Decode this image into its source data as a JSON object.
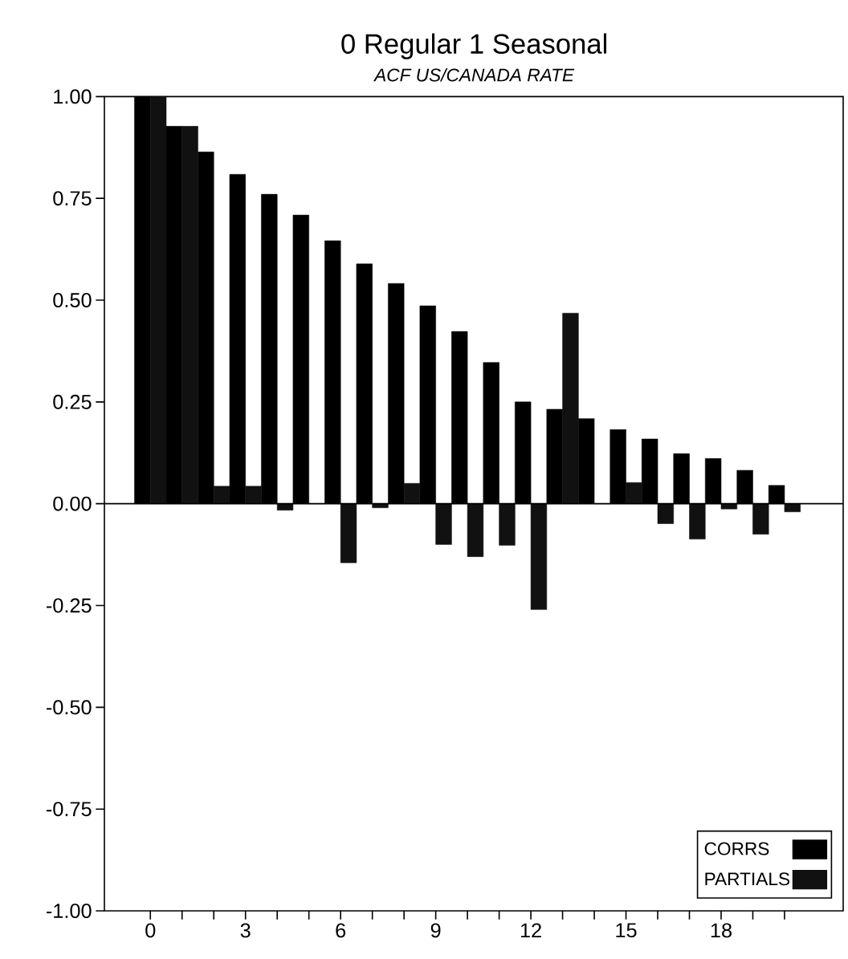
{
  "chart_data": {
    "type": "bar",
    "title": "0 Regular 1 Seasonal",
    "subtitle": "*ACF US/CANADA RATE*",
    "categories": [
      "0",
      null,
      null,
      "3",
      null,
      null,
      "6",
      null,
      null,
      "9",
      null,
      null,
      "12",
      null,
      null,
      "15",
      null,
      null,
      "18",
      null,
      null
    ],
    "series": [
      {
        "name": "CORRS",
        "color": "#000000",
        "values": [
          1.0,
          0.927,
          0.864,
          0.809,
          0.76,
          0.709,
          0.646,
          0.589,
          0.541,
          0.486,
          0.423,
          0.347,
          0.25,
          0.232,
          0.209,
          0.182,
          0.159,
          0.123,
          0.111,
          0.082,
          0.045
        ]
      },
      {
        "name": "PARTIALS",
        "color": "#111111",
        "values": [
          1.0,
          0.927,
          0.043,
          0.043,
          -0.016,
          0.0,
          -0.145,
          -0.01,
          0.05,
          -0.1,
          -0.13,
          -0.102,
          -0.26,
          0.468,
          0.0,
          0.052,
          -0.049,
          -0.087,
          -0.013,
          -0.075,
          -0.02
        ]
      }
    ],
    "ylim": [
      -1,
      1
    ],
    "yticks": [
      {
        "value": -1,
        "label": "-1.00"
      },
      {
        "value": -0.75,
        "label": "-0.75"
      },
      {
        "value": -0.5,
        "label": "-0.50"
      },
      {
        "value": -0.25,
        "label": "-0.25"
      },
      {
        "value": 0,
        "label": "0.00"
      },
      {
        "value": 0.25,
        "label": "0.25"
      },
      {
        "value": 0.5,
        "label": "0.50"
      },
      {
        "value": 0.75,
        "label": "0.75"
      },
      {
        "value": 1,
        "label": "1.00"
      }
    ],
    "ref_lines": [
      {
        "axis": "y",
        "value": 0,
        "color": "#000000"
      }
    ],
    "legend": "bottom right"
  }
}
